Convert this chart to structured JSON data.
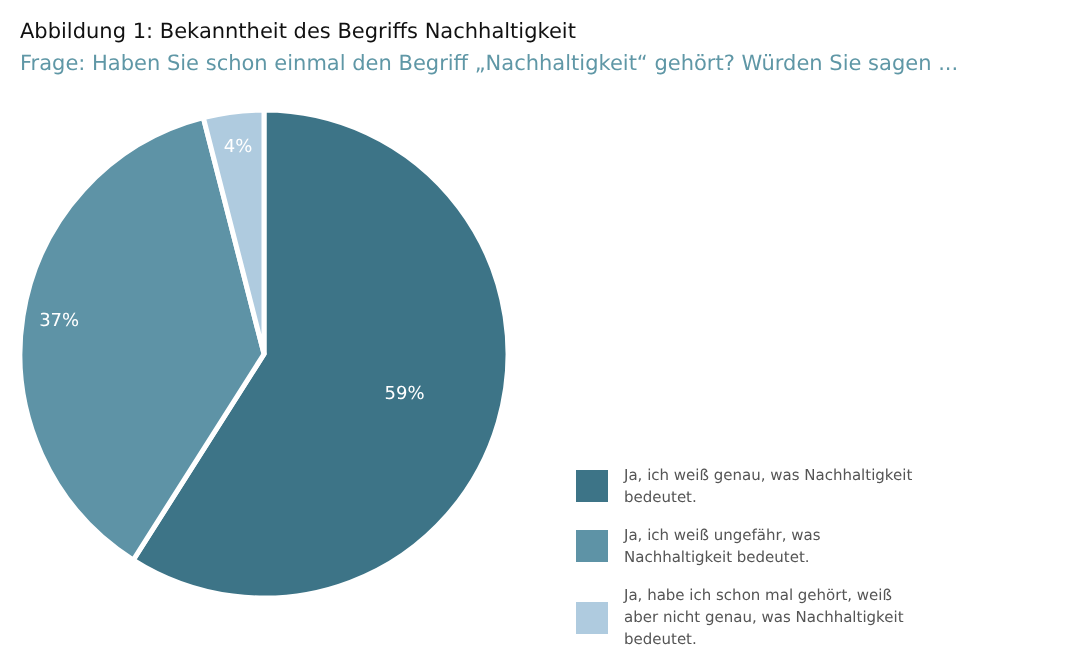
{
  "chart_data": {
    "type": "pie",
    "title": "Abbildung 1: Bekanntheit des Begriffs Nachhaltigkeit",
    "subtitle": "Frage: Haben Sie schon einmal den Begriff „Nachhaltigkeit“ gehört? Würden Sie sagen ...",
    "categories": [
      "Ja, ich weiß genau, was Nachhaltigkeit bedeutet.",
      "Ja, ich weiß ungefähr, was Nachhaltigkeit bedeutet.",
      "Ja, habe ich schon mal gehört, weiß aber nicht genau, was Nachhaltigkeit bedeutet."
    ],
    "values": [
      59,
      37,
      4
    ],
    "colors": [
      "#3d7487",
      "#5e93a6",
      "#afcbdf"
    ],
    "value_labels": [
      "59%",
      "37%",
      "4%"
    ],
    "legend": "bottom right"
  }
}
